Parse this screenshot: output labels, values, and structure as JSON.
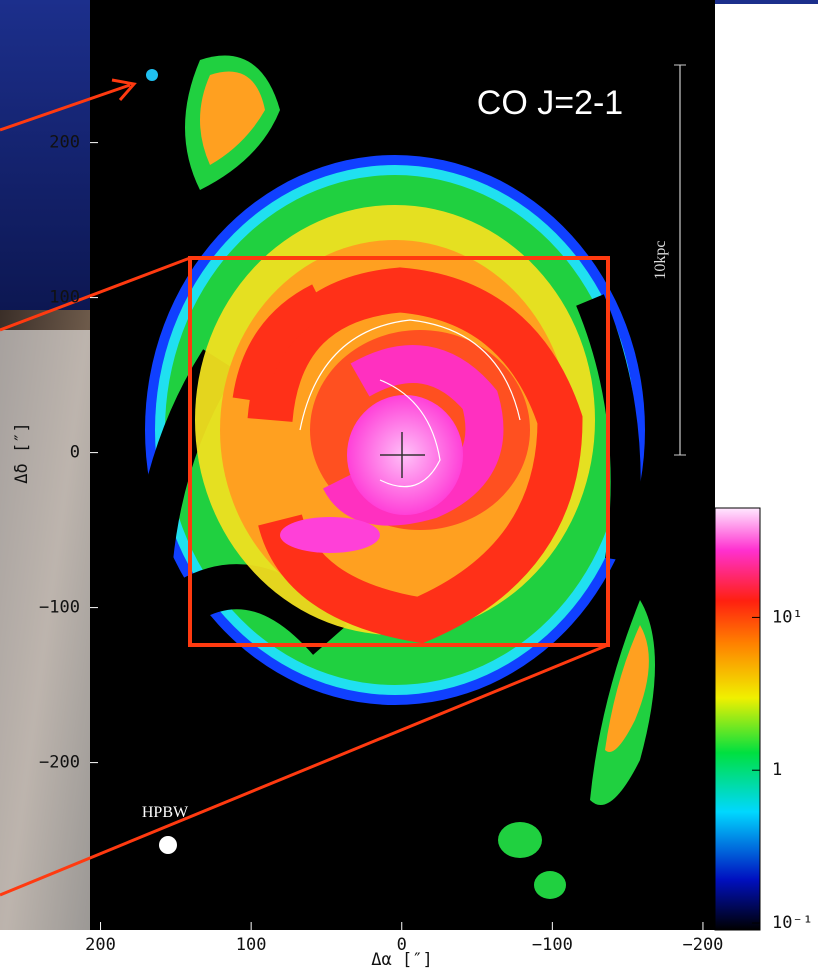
{
  "chart_data": {
    "type": "map",
    "title": "CO J=2-1",
    "scale_bar_label": "10kpc",
    "beam_label": "HPBW",
    "x_label": "Δα [″]",
    "y_label": "Δδ [″]",
    "xlim": [
      207,
      -208
    ],
    "xticks": [
      200,
      100,
      0,
      {
        "value": -100,
        "label": "−100"
      },
      {
        "value": -200,
        "label": "−200"
      }
    ],
    "ylim": [
      -308,
      292
    ],
    "yticks": [
      200,
      100,
      0,
      {
        "value": -100,
        "label": "−100"
      },
      {
        "value": -200,
        "label": "−200"
      }
    ],
    "colorbar_lim": [
      0.09,
      52
    ],
    "colorbar_log": true,
    "colorbar_ticks": [
      {
        "value": 10,
        "label": "10¹"
      },
      {
        "value": 1,
        "label": "1"
      },
      {
        "value": 0.1,
        "label": "10⁻¹"
      }
    ]
  }
}
